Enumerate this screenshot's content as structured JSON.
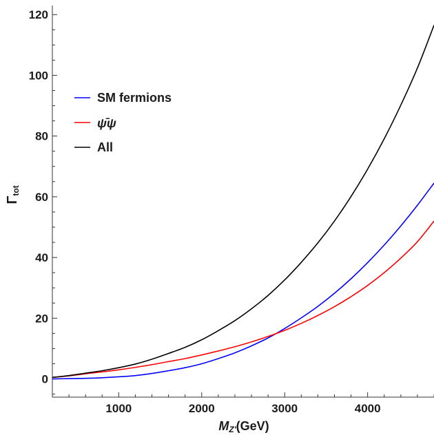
{
  "chart_data": {
    "type": "line",
    "xlabel_main": "M",
    "xlabel_sub": "Z'",
    "xlabel_unit": "(GeV)",
    "ylabel_main": "Γ",
    "ylabel_sub": "tot",
    "xlim": [
      200,
      4800
    ],
    "ylim": [
      -6,
      123
    ],
    "xticks": [
      1000,
      2000,
      3000,
      4000
    ],
    "yticks": [
      0,
      20,
      40,
      60,
      80,
      100,
      120
    ],
    "legend_placement": "top-left",
    "grid": false,
    "series": [
      {
        "name": "SM fermions",
        "color": "#0000ff",
        "x": [
          200,
          400,
          600,
          800,
          1000,
          1200,
          1400,
          1600,
          1800,
          2000,
          2200,
          2400,
          2600,
          2800,
          3000,
          3200,
          3400,
          3600,
          3800,
          4000,
          4200,
          4400,
          4600,
          4800
        ],
        "y": [
          0.0,
          0.1,
          0.2,
          0.4,
          0.7,
          1.1,
          1.8,
          2.7,
          3.7,
          5.0,
          6.7,
          8.6,
          10.9,
          13.5,
          16.6,
          20.1,
          23.9,
          28.2,
          33.0,
          38.3,
          44.1,
          50.4,
          57.2,
          64.5
        ]
      },
      {
        "name": "ψ̄ψ",
        "color": "#ff0000",
        "x": [
          200,
          400,
          600,
          800,
          1000,
          1200,
          1400,
          1600,
          1800,
          2000,
          2200,
          2400,
          2600,
          2800,
          3000,
          3200,
          3400,
          3600,
          3800,
          4000,
          4200,
          4400,
          4600,
          4800
        ],
        "y": [
          0.5,
          1.0,
          1.7,
          2.3,
          3.0,
          3.8,
          4.7,
          5.7,
          6.7,
          7.9,
          9.2,
          10.6,
          12.2,
          14.0,
          16.0,
          18.3,
          20.9,
          23.8,
          27.1,
          30.8,
          35.0,
          39.8,
          45.2,
          52.0
        ]
      },
      {
        "name": "All",
        "color": "#000000",
        "x": [
          200,
          400,
          600,
          800,
          1000,
          1200,
          1400,
          1600,
          1800,
          2000,
          2200,
          2400,
          2600,
          2800,
          3000,
          3200,
          3400,
          3600,
          3800,
          4000,
          4200,
          4400,
          4600,
          4800
        ],
        "y": [
          0.5,
          1.1,
          1.9,
          2.7,
          3.7,
          4.9,
          6.5,
          8.4,
          10.4,
          12.9,
          15.9,
          19.2,
          23.1,
          27.5,
          32.6,
          38.4,
          44.8,
          52.0,
          60.1,
          69.1,
          79.1,
          90.2,
          102.4,
          116.5
        ]
      }
    ]
  }
}
